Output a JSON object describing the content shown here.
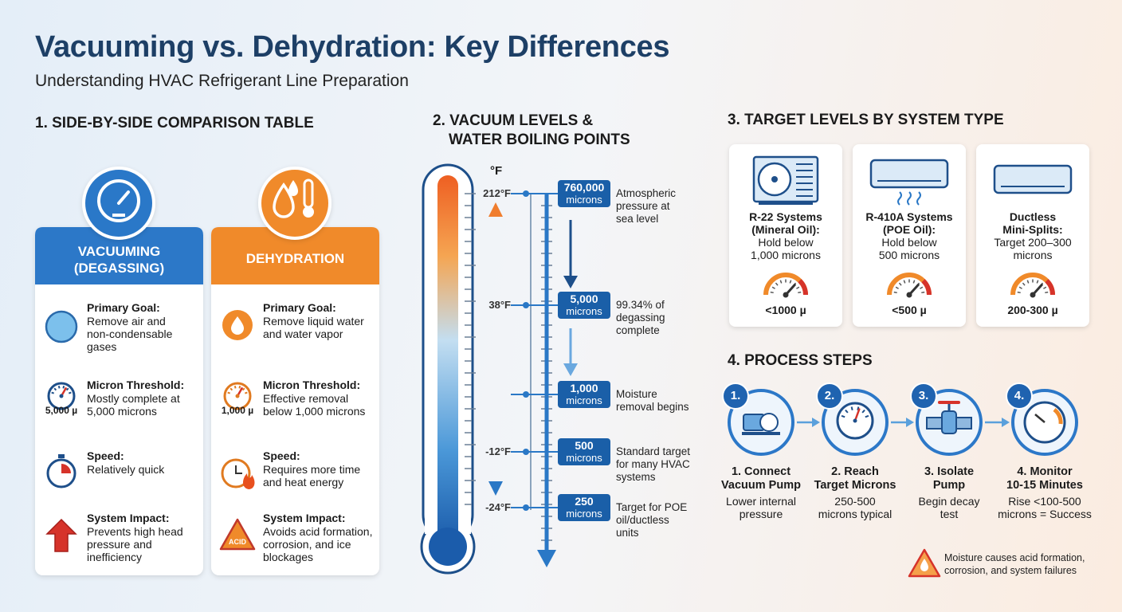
{
  "header": {
    "title": "Vacuuming vs. Dehydration: Key Differences",
    "subtitle": "Understanding HVAC Refrigerant Line Preparation"
  },
  "comparison": {
    "heading": "1. SIDE-BY-SIDE COMPARISON TABLE",
    "columns": [
      {
        "header": [
          "VACUUMING",
          "(DEGASSING)"
        ],
        "items": [
          {
            "label": "Primary Goal:",
            "text": [
              "Remove air and",
              "non-condensable",
              "gases"
            ]
          },
          {
            "label": "Micron Threshold:",
            "text": [
              "Mostly complete at",
              "5,000 microns"
            ],
            "icon_label": "5,000 µ"
          },
          {
            "label": "Speed:",
            "text": [
              "Relatively quick"
            ]
          },
          {
            "label": "System Impact:",
            "text": [
              "Prevents high head",
              "pressure and",
              "inefficiency"
            ]
          }
        ]
      },
      {
        "header": [
          "DEHYDRATION"
        ],
        "items": [
          {
            "label": "Primary Goal:",
            "text": [
              "Remove liquid water",
              "and water vapor"
            ]
          },
          {
            "label": "Micron Threshold:",
            "text": [
              "Effective removal",
              "below 1,000 microns"
            ],
            "icon_label": "1,000 µ"
          },
          {
            "label": "Speed:",
            "text": [
              "Requires more time",
              "and heat energy"
            ]
          },
          {
            "label": "System Impact:",
            "text": [
              "Avoids acid formation,",
              "corrosion, and ice",
              "blockages"
            ],
            "icon_label": "ACID"
          }
        ]
      }
    ]
  },
  "thermometer": {
    "heading": [
      "2. VACUUM LEVELS &",
      "WATER BOILING POINTS"
    ],
    "temp_unit": "°F",
    "unit": "microns",
    "levels": [
      {
        "temp": "212°F",
        "microns": "760,000",
        "note": [
          "Atmospheric",
          "pressure at",
          "sea level"
        ]
      },
      {
        "temp": "38°F",
        "microns": "5,000",
        "note": [
          "99.34% of",
          "degassing",
          "complete"
        ]
      },
      {
        "microns": "1,000",
        "note": [
          "Moisture",
          "removal begins"
        ]
      },
      {
        "temp": "-12°F",
        "microns": "500",
        "note": [
          "Standard target",
          "for many HVAC",
          "systems"
        ]
      },
      {
        "temp": "-24°F",
        "microns": "250",
        "note": [
          "Target for POE",
          "oil/ductless",
          "units"
        ]
      }
    ]
  },
  "targets": {
    "heading": "3. TARGET LEVELS BY SYSTEM TYPE",
    "systems": [
      {
        "name": [
          "R-22 Systems",
          "(Mineral Oil):"
        ],
        "desc": [
          "Hold below",
          "1,000 microns"
        ],
        "gauge": "<1000 µ"
      },
      {
        "name": [
          "R-410A Systems",
          "(POE Oil):"
        ],
        "desc": [
          "Hold below",
          "500 microns"
        ],
        "gauge": "<500 µ"
      },
      {
        "name": [
          "Ductless",
          "Mini-Splits:"
        ],
        "desc": [
          "Target 200–300",
          "microns"
        ],
        "gauge": "200-300 µ"
      }
    ]
  },
  "process": {
    "heading": "4. PROCESS STEPS",
    "steps": [
      {
        "num": "1.",
        "title": [
          "1. Connect",
          "Vacuum Pump"
        ],
        "desc": [
          "Lower internal",
          "pressure"
        ]
      },
      {
        "num": "2.",
        "title": [
          "2. Reach",
          "Target Microns"
        ],
        "desc": [
          "250-500",
          "microns typical"
        ]
      },
      {
        "num": "3.",
        "title": [
          "3. Isolate",
          "Pump"
        ],
        "desc": [
          "Begin decay",
          "test"
        ]
      },
      {
        "num": "4.",
        "title": [
          "4. Monitor",
          "10-15 Minutes"
        ],
        "desc": [
          "Rise <100-500",
          "microns = Success"
        ]
      }
    ],
    "warning": [
      "Moisture causes acid formation,",
      "corrosion, and system failures"
    ]
  }
}
